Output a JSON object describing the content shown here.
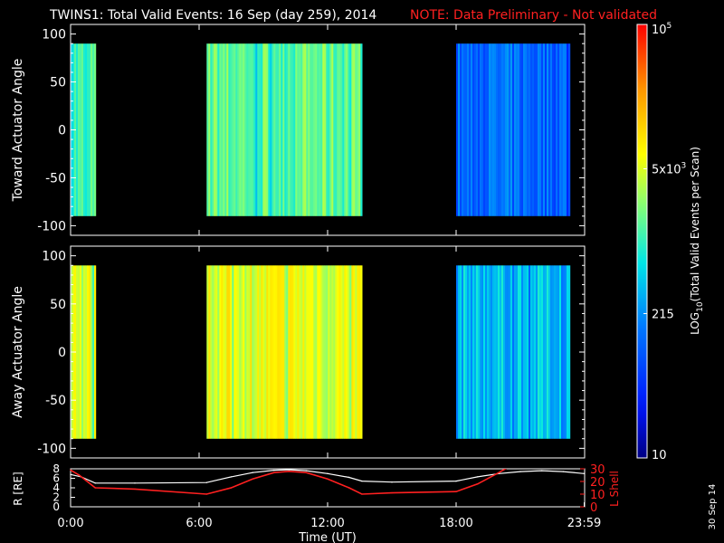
{
  "title": {
    "main": "TWINS1: Total Valid Events: 16 Sep (day 259), 2014",
    "note": "NOTE: Data Preliminary - Not validated"
  },
  "side_date": "30 Sep 14",
  "colors": {
    "background": "#000000",
    "axes": "#ffffff",
    "note": "#ff2020",
    "lshell": "#ff2020",
    "radius": "#ffffff"
  },
  "chart_data": [
    {
      "type": "heatmap",
      "name": "toward",
      "ylabel": "Toward Actuator Angle",
      "ylim": [
        -110,
        110
      ],
      "yticks": [
        100,
        50,
        0,
        -50,
        -100
      ],
      "x_range_hours": [
        0,
        24
      ],
      "angle_range": [
        -90,
        90
      ],
      "segments": [
        {
          "start_hour": 0.0,
          "end_hour": 1.15,
          "base_level": 0.5
        },
        {
          "start_hour": 6.35,
          "end_hour": 13.6,
          "base_level": 0.55
        },
        {
          "start_hour": 18.0,
          "end_hour": 23.25,
          "base_level": 0.27
        }
      ]
    },
    {
      "type": "heatmap",
      "name": "away",
      "ylabel": "Away Actuator Angle",
      "ylim": [
        -110,
        110
      ],
      "yticks": [
        100,
        50,
        0,
        -50,
        -100
      ],
      "x_range_hours": [
        0,
        24
      ],
      "angle_range": [
        -90,
        90
      ],
      "segments": [
        {
          "start_hour": 0.0,
          "end_hour": 1.15,
          "base_level": 0.66
        },
        {
          "start_hour": 6.35,
          "end_hour": 13.6,
          "base_level": 0.68
        },
        {
          "start_hour": 18.0,
          "end_hour": 23.25,
          "base_level": 0.4
        }
      ]
    },
    {
      "type": "line",
      "name": "orbit",
      "xlabel": "Time (UT)",
      "xticks": [
        "0:00",
        "6:00",
        "12:00",
        "18:00",
        "23:59"
      ],
      "xtick_hours": [
        0,
        6,
        12,
        18,
        23.98
      ],
      "left_axis": {
        "label": "R [RE]",
        "ylim": [
          0,
          8
        ],
        "ticks": [
          0,
          2,
          4,
          6,
          8
        ]
      },
      "right_axis": {
        "label": "L Shell",
        "ylim": [
          0,
          30
        ],
        "ticks": [
          0,
          10,
          20,
          30
        ]
      },
      "series": [
        {
          "name": "R",
          "axis": "left",
          "x": [
            0,
            0.5,
            1.15,
            3,
            6.35,
            7.5,
            8.5,
            9.5,
            10.2,
            11,
            12,
            13,
            13.6,
            15,
            18,
            19,
            20,
            21,
            22,
            23,
            23.98
          ],
          "y": [
            6.8,
            6.3,
            5.0,
            5.0,
            5.1,
            6.3,
            7.2,
            7.7,
            7.8,
            7.6,
            7.0,
            6.2,
            5.4,
            5.2,
            5.4,
            6.3,
            7.0,
            7.4,
            7.6,
            7.4,
            7.0
          ]
        },
        {
          "name": "L Shell",
          "axis": "right",
          "x": [
            0,
            0.4,
            1.15,
            3,
            6.35,
            7.5,
            8.5,
            9.5,
            10.2,
            11,
            12,
            13,
            13.6,
            15,
            18,
            19,
            20,
            20.4
          ],
          "y": [
            29,
            25,
            15,
            14,
            10,
            15,
            22,
            27,
            28,
            27,
            22,
            15,
            10,
            11,
            12,
            18,
            27,
            31
          ]
        }
      ]
    }
  ],
  "colorbar": {
    "label": "LOG10(Total Valid Events per Scan)",
    "label_main": "LOG",
    "label_sub": "10",
    "label_rest": "(Total Valid Events per Scan)",
    "ticks": [
      {
        "text": "10",
        "level": 0.0
      },
      {
        "text": "215",
        "level": 0.333
      },
      {
        "text": "5x10",
        "sup": "3",
        "level": 0.667
      },
      {
        "text": "10",
        "sup": "5",
        "level": 1.0
      }
    ]
  }
}
